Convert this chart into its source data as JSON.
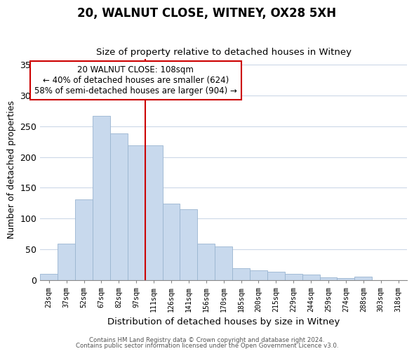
{
  "title": "20, WALNUT CLOSE, WITNEY, OX28 5XH",
  "subtitle": "Size of property relative to detached houses in Witney",
  "xlabel": "Distribution of detached houses by size in Witney",
  "ylabel": "Number of detached properties",
  "bar_labels": [
    "23sqm",
    "37sqm",
    "52sqm",
    "67sqm",
    "82sqm",
    "97sqm",
    "111sqm",
    "126sqm",
    "141sqm",
    "156sqm",
    "170sqm",
    "185sqm",
    "200sqm",
    "215sqm",
    "229sqm",
    "244sqm",
    "259sqm",
    "274sqm",
    "288sqm",
    "303sqm",
    "318sqm"
  ],
  "bar_heights": [
    10,
    59,
    131,
    267,
    238,
    219,
    219,
    124,
    115,
    59,
    55,
    19,
    16,
    13,
    10,
    9,
    4,
    3,
    5,
    0,
    0
  ],
  "bar_color": "#c8d9ed",
  "bar_edge_color": "#9ab5d0",
  "vline_color": "#cc0000",
  "ylim": [
    0,
    360
  ],
  "yticks": [
    0,
    50,
    100,
    150,
    200,
    250,
    300,
    350
  ],
  "annotation_title": "20 WALNUT CLOSE: 108sqm",
  "annotation_line1": "← 40% of detached houses are smaller (624)",
  "annotation_line2": "58% of semi-detached houses are larger (904) →",
  "annotation_box_color": "#ffffff",
  "annotation_box_edge": "#cc0000",
  "footer1": "Contains HM Land Registry data © Crown copyright and database right 2024.",
  "footer2": "Contains public sector information licensed under the Open Government Licence v3.0.",
  "background_color": "#ffffff",
  "grid_color": "#ccd8e8"
}
